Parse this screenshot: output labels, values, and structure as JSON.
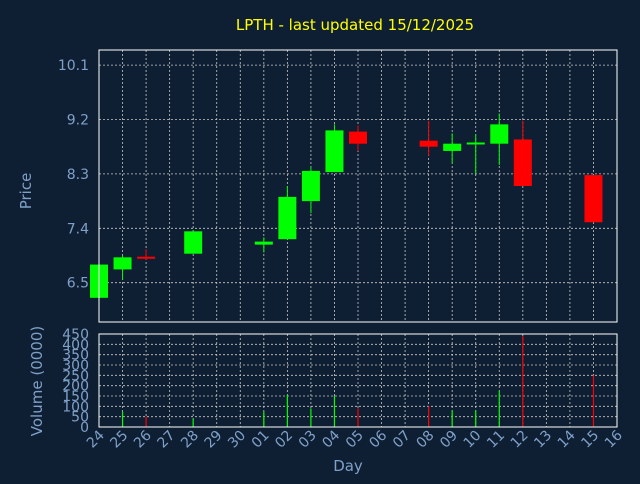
{
  "chart_data": {
    "type": "candlestick",
    "title": "LPTH - last updated 15/12/2025",
    "xlabel": "Day",
    "price_panel": {
      "ylabel": "Price",
      "yticks": [
        "10.1",
        "9.2",
        "8.3",
        "7.4",
        "6.5"
      ],
      "ytick_values": [
        10.1,
        9.2,
        8.3,
        7.4,
        6.5
      ],
      "ylim": [
        5.85,
        10.35
      ]
    },
    "volume_panel": {
      "ylabel": "Volume (0000)",
      "yticks": [
        "450",
        "400",
        "350",
        "300",
        "250",
        "200",
        "150",
        "100",
        "50",
        "0"
      ],
      "ytick_values": [
        450,
        400,
        350,
        300,
        250,
        200,
        150,
        100,
        50,
        0
      ],
      "ylim": [
        0,
        450
      ]
    },
    "x_labels": [
      "24",
      "25",
      "26",
      "27",
      "28",
      "29",
      "30",
      "01",
      "02",
      "03",
      "04",
      "05",
      "06",
      "07",
      "08",
      "09",
      "10",
      "11",
      "12",
      "13",
      "14",
      "15",
      "16"
    ],
    "candles": [
      {
        "day": "24",
        "open": 6.25,
        "high": 6.8,
        "low": 6.2,
        "close": 6.8,
        "volume": 0
      },
      {
        "day": "25",
        "open": 6.72,
        "high": 6.95,
        "low": 6.55,
        "close": 6.92,
        "volume": 75
      },
      {
        "day": "26",
        "open": 6.93,
        "high": 7.05,
        "low": 6.88,
        "close": 6.9,
        "volume": 50
      },
      {
        "day": "28",
        "open": 6.98,
        "high": 7.36,
        "low": 6.98,
        "close": 7.35,
        "volume": 40
      },
      {
        "day": "01",
        "open": 7.13,
        "high": 7.25,
        "low": 7.0,
        "close": 7.18,
        "volume": 75
      },
      {
        "day": "02",
        "open": 7.22,
        "high": 8.1,
        "low": 7.22,
        "close": 7.92,
        "volume": 155
      },
      {
        "day": "03",
        "open": 7.85,
        "high": 8.42,
        "low": 7.65,
        "close": 8.35,
        "volume": 90
      },
      {
        "day": "04",
        "open": 8.33,
        "high": 9.12,
        "low": 8.33,
        "close": 9.02,
        "volume": 150
      },
      {
        "day": "05",
        "open": 9.0,
        "high": 9.1,
        "low": 8.68,
        "close": 8.8,
        "volume": 90
      },
      {
        "day": "08",
        "open": 8.85,
        "high": 9.18,
        "low": 8.6,
        "close": 8.75,
        "volume": 100
      },
      {
        "day": "09",
        "open": 8.68,
        "high": 8.97,
        "low": 8.48,
        "close": 8.8,
        "volume": 80
      },
      {
        "day": "10",
        "open": 8.8,
        "high": 8.95,
        "low": 8.3,
        "close": 8.82,
        "volume": 80
      },
      {
        "day": "11",
        "open": 8.8,
        "high": 9.3,
        "low": 8.45,
        "close": 9.12,
        "volume": 175
      },
      {
        "day": "12",
        "open": 8.87,
        "high": 9.18,
        "low": 8.1,
        "close": 8.1,
        "volume": 440
      },
      {
        "day": "15",
        "open": 8.28,
        "high": 8.28,
        "low": 7.5,
        "close": 7.5,
        "volume": 250
      }
    ],
    "grid": true,
    "colors": {
      "background": "#0f1f33",
      "panel": "#0f1f33",
      "grid": "#c8c8c8",
      "up": "#00ff00",
      "down": "#ff0000",
      "title": "#ffff00",
      "axis_text": "#7fa0c8",
      "border": "#ffffff"
    }
  }
}
